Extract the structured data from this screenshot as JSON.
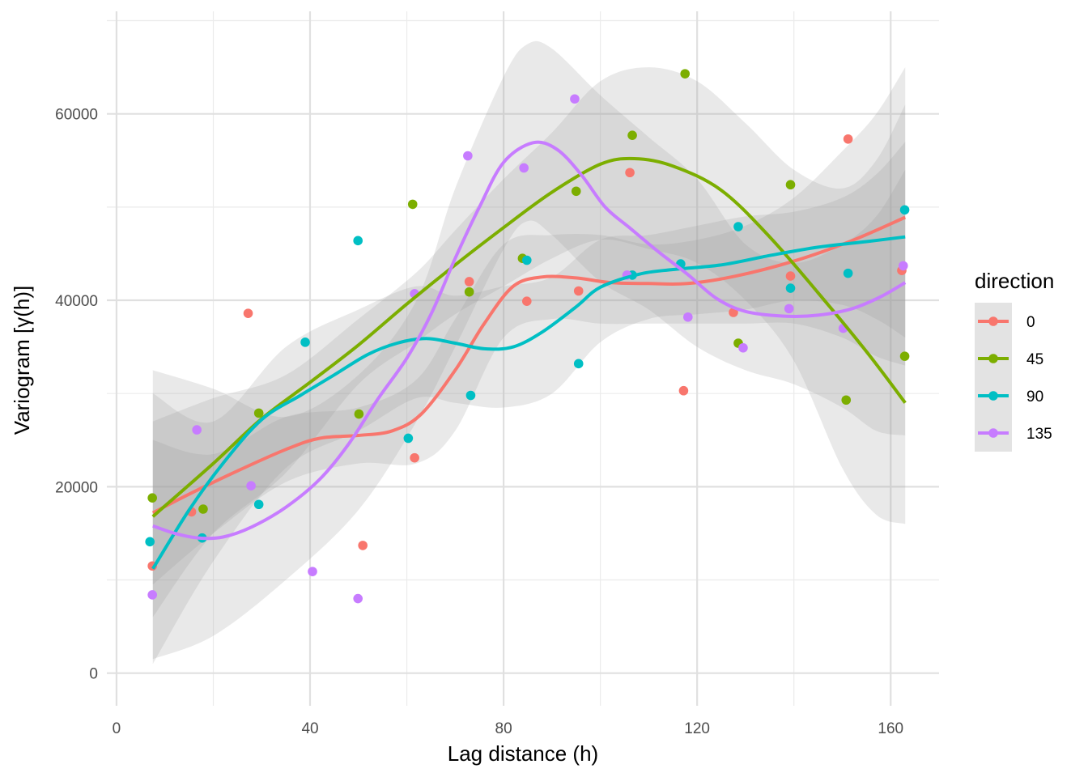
{
  "chart_data": {
    "type": "scatter",
    "xlabel": "Lag distance (h)",
    "ylabel": "Variogram [γ(h)]",
    "xlim": [
      -2,
      170
    ],
    "ylim": [
      -3500,
      71000
    ],
    "x_ticks": [
      0,
      40,
      80,
      120,
      160
    ],
    "x_tick_labels": [
      "0",
      "40",
      "80",
      "120",
      "160"
    ],
    "y_ticks": [
      0,
      20000,
      40000,
      60000
    ],
    "y_tick_labels": [
      "0",
      "20000",
      "40000",
      "60000"
    ],
    "grid": true,
    "legend": {
      "title": "direction",
      "position": "right"
    },
    "series": [
      {
        "name": "0",
        "color": "#F8766D",
        "points": [
          [
            7.4,
            11500
          ],
          [
            15.5,
            17300
          ],
          [
            27.2,
            38600
          ],
          [
            50.9,
            13700
          ],
          [
            61.6,
            23100
          ],
          [
            72.9,
            42000
          ],
          [
            84.8,
            39900
          ],
          [
            95.5,
            41000
          ],
          [
            106.1,
            53700
          ],
          [
            117.2,
            30300
          ],
          [
            127.5,
            38700
          ],
          [
            139.3,
            42600
          ],
          [
            151.2,
            57300
          ],
          [
            162.3,
            43200
          ]
        ],
        "smooth": [
          [
            7.5,
            17200
          ],
          [
            15,
            19200
          ],
          [
            25,
            21700
          ],
          [
            35,
            24000
          ],
          [
            42,
            25200
          ],
          [
            50,
            25500
          ],
          [
            57,
            26000
          ],
          [
            63,
            27800
          ],
          [
            70,
            32500
          ],
          [
            76,
            37500
          ],
          [
            82,
            41500
          ],
          [
            88,
            42500
          ],
          [
            95,
            42400
          ],
          [
            102,
            41900
          ],
          [
            110,
            41800
          ],
          [
            118,
            41800
          ],
          [
            128,
            42600
          ],
          [
            140,
            44200
          ],
          [
            152,
            46400
          ],
          [
            163,
            48900
          ]
        ],
        "band_upper": [
          [
            7.5,
            25000
          ],
          [
            20,
            23500
          ],
          [
            35,
            27500
          ],
          [
            50,
            28500
          ],
          [
            62,
            31500
          ],
          [
            70,
            38000
          ],
          [
            80,
            46000
          ],
          [
            90,
            47000
          ],
          [
            100,
            47000
          ],
          [
            110,
            46000
          ],
          [
            120,
            46500
          ],
          [
            130,
            48000
          ],
          [
            140,
            51000
          ],
          [
            150,
            56000
          ],
          [
            157,
            60000
          ],
          [
            163,
            65000
          ]
        ],
        "band_lower": [
          [
            7.5,
            9500
          ],
          [
            20,
            15000
          ],
          [
            35,
            20500
          ],
          [
            50,
            22500
          ],
          [
            62,
            22500
          ],
          [
            70,
            26000
          ],
          [
            80,
            36000
          ],
          [
            90,
            38000
          ],
          [
            100,
            37500
          ],
          [
            110,
            37500
          ],
          [
            120,
            37500
          ],
          [
            130,
            37500
          ],
          [
            140,
            37500
          ],
          [
            150,
            36000
          ],
          [
            157,
            34000
          ],
          [
            163,
            33000
          ]
        ]
      },
      {
        "name": "45",
        "color": "#7CAE00",
        "points": [
          [
            7.4,
            18800
          ],
          [
            17.9,
            17600
          ],
          [
            29.4,
            27900
          ],
          [
            50.1,
            27800
          ],
          [
            61.2,
            50300
          ],
          [
            72.9,
            40900
          ],
          [
            83.9,
            44500
          ],
          [
            95.0,
            51700
          ],
          [
            106.6,
            57700
          ],
          [
            117.5,
            64300
          ],
          [
            128.5,
            35400
          ],
          [
            139.3,
            52400
          ],
          [
            150.8,
            29300
          ],
          [
            162.9,
            34000
          ]
        ],
        "smooth": [
          [
            7.5,
            16800
          ],
          [
            20,
            22500
          ],
          [
            30,
            27300
          ],
          [
            40,
            31200
          ],
          [
            50,
            35200
          ],
          [
            60,
            39600
          ],
          [
            70,
            43800
          ],
          [
            80,
            47800
          ],
          [
            90,
            51600
          ],
          [
            100,
            54600
          ],
          [
            107,
            55200
          ],
          [
            115,
            54400
          ],
          [
            125,
            51800
          ],
          [
            135,
            46800
          ],
          [
            145,
            40800
          ],
          [
            155,
            34500
          ],
          [
            163,
            29000
          ]
        ],
        "band_upper": [
          [
            7.5,
            27000
          ],
          [
            20,
            29500
          ],
          [
            35,
            32000
          ],
          [
            50,
            38000
          ],
          [
            62,
            43000
          ],
          [
            70,
            47500
          ],
          [
            80,
            53000
          ],
          [
            90,
            58000
          ],
          [
            100,
            63500
          ],
          [
            110,
            65000
          ],
          [
            120,
            63500
          ],
          [
            130,
            59000
          ],
          [
            140,
            54000
          ],
          [
            150,
            52000
          ],
          [
            157,
            55000
          ],
          [
            163,
            61000
          ]
        ],
        "band_lower": [
          [
            7.5,
            6000
          ],
          [
            20,
            15000
          ],
          [
            35,
            21500
          ],
          [
            50,
            31000
          ],
          [
            62,
            35500
          ],
          [
            70,
            38500
          ],
          [
            80,
            41500
          ],
          [
            90,
            44500
          ],
          [
            100,
            46500
          ],
          [
            110,
            45500
          ],
          [
            120,
            44000
          ],
          [
            130,
            40000
          ],
          [
            140,
            33500
          ],
          [
            150,
            22000
          ],
          [
            157,
            17000
          ],
          [
            163,
            16000
          ]
        ]
      },
      {
        "name": "90",
        "color": "#00BFC4",
        "points": [
          [
            6.9,
            14100
          ],
          [
            17.7,
            14500
          ],
          [
            29.4,
            18100
          ],
          [
            39.0,
            35500
          ],
          [
            49.9,
            46400
          ],
          [
            60.3,
            25200
          ],
          [
            73.2,
            29800
          ],
          [
            84.8,
            44300
          ],
          [
            95.5,
            33200
          ],
          [
            106.6,
            42700
          ],
          [
            116.6,
            43900
          ],
          [
            128.5,
            47900
          ],
          [
            139.3,
            41300
          ],
          [
            151.2,
            42900
          ],
          [
            162.9,
            49700
          ]
        ],
        "smooth": [
          [
            7.5,
            11200
          ],
          [
            15,
            17500
          ],
          [
            22,
            22500
          ],
          [
            30,
            27200
          ],
          [
            38,
            29800
          ],
          [
            45,
            32000
          ],
          [
            52,
            34200
          ],
          [
            58,
            35400
          ],
          [
            64,
            35900
          ],
          [
            70,
            35400
          ],
          [
            76,
            34800
          ],
          [
            82,
            35000
          ],
          [
            88,
            36600
          ],
          [
            95,
            39300
          ],
          [
            100,
            41400
          ],
          [
            108,
            42800
          ],
          [
            115,
            43300
          ],
          [
            125,
            43800
          ],
          [
            135,
            44800
          ],
          [
            145,
            45700
          ],
          [
            155,
            46300
          ],
          [
            163,
            46800
          ]
        ],
        "band_upper": [
          [
            7.5,
            30000
          ],
          [
            20,
            27000
          ],
          [
            35,
            35000
          ],
          [
            50,
            39000
          ],
          [
            62,
            41500
          ],
          [
            70,
            40500
          ],
          [
            80,
            41500
          ],
          [
            90,
            42500
          ],
          [
            100,
            46500
          ],
          [
            110,
            47000
          ],
          [
            120,
            48000
          ],
          [
            130,
            49000
          ],
          [
            140,
            49500
          ],
          [
            150,
            51000
          ],
          [
            157,
            53500
          ],
          [
            163,
            57000
          ]
        ],
        "band_lower": [
          [
            7.5,
            1000
          ],
          [
            20,
            12000
          ],
          [
            35,
            22000
          ],
          [
            50,
            26000
          ],
          [
            62,
            29500
          ],
          [
            70,
            29000
          ],
          [
            80,
            28500
          ],
          [
            90,
            30000
          ],
          [
            100,
            35500
          ],
          [
            110,
            38000
          ],
          [
            120,
            38500
          ],
          [
            130,
            39000
          ],
          [
            140,
            40000
          ],
          [
            150,
            39500
          ],
          [
            157,
            38000
          ],
          [
            163,
            36000
          ]
        ]
      },
      {
        "name": "135",
        "color": "#C77CFF",
        "points": [
          [
            7.4,
            8400
          ],
          [
            16.6,
            26100
          ],
          [
            27.8,
            20100
          ],
          [
            40.5,
            10900
          ],
          [
            49.9,
            8000
          ],
          [
            61.6,
            40700
          ],
          [
            72.6,
            55500
          ],
          [
            84.2,
            54200
          ],
          [
            94.7,
            61600
          ],
          [
            105.5,
            42700
          ],
          [
            118.1,
            38200
          ],
          [
            129.5,
            34900
          ],
          [
            139.0,
            39100
          ],
          [
            150.2,
            37000
          ],
          [
            162.6,
            43700
          ]
        ],
        "smooth": [
          [
            7.5,
            15800
          ],
          [
            12,
            15000
          ],
          [
            17,
            14500
          ],
          [
            22,
            14600
          ],
          [
            28,
            15700
          ],
          [
            35,
            17800
          ],
          [
            42,
            20800
          ],
          [
            48,
            24600
          ],
          [
            54,
            29400
          ],
          [
            60,
            33800
          ],
          [
            65,
            38500
          ],
          [
            70,
            44500
          ],
          [
            75,
            50000
          ],
          [
            80,
            54800
          ],
          [
            86,
            56900
          ],
          [
            91,
            56200
          ],
          [
            96,
            53500
          ],
          [
            101,
            50000
          ],
          [
            106,
            47800
          ],
          [
            112,
            45200
          ],
          [
            118,
            42800
          ],
          [
            124,
            40200
          ],
          [
            130,
            38800
          ],
          [
            138,
            38300
          ],
          [
            145,
            38400
          ],
          [
            152,
            39100
          ],
          [
            158,
            40400
          ],
          [
            163,
            41900
          ]
        ],
        "band_upper": [
          [
            7.5,
            32500
          ],
          [
            20,
            30500
          ],
          [
            35,
            27500
          ],
          [
            50,
            32000
          ],
          [
            62,
            40000
          ],
          [
            70,
            52000
          ],
          [
            80,
            64000
          ],
          [
            85,
            67500
          ],
          [
            90,
            67000
          ],
          [
            100,
            62000
          ],
          [
            110,
            57500
          ],
          [
            120,
            53000
          ],
          [
            130,
            46000
          ],
          [
            140,
            44000
          ],
          [
            150,
            46000
          ],
          [
            157,
            49000
          ],
          [
            163,
            54000
          ]
        ],
        "band_lower": [
          [
            7.5,
            1500
          ],
          [
            20,
            4000
          ],
          [
            35,
            10000
          ],
          [
            50,
            17500
          ],
          [
            62,
            27000
          ],
          [
            70,
            35000
          ],
          [
            80,
            45500
          ],
          [
            85,
            48500
          ],
          [
            90,
            47000
          ],
          [
            100,
            42000
          ],
          [
            110,
            39000
          ],
          [
            120,
            35000
          ],
          [
            130,
            32500
          ],
          [
            140,
            31000
          ],
          [
            150,
            28500
          ],
          [
            157,
            26000
          ],
          [
            163,
            25500
          ]
        ]
      }
    ]
  }
}
